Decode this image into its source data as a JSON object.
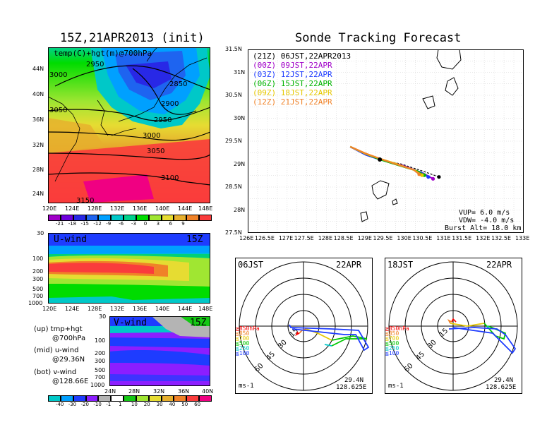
{
  "left_title": "15Z,21APR2013 (init)",
  "right_title": "Sonde Tracking Forecast",
  "map_panel": {
    "label": "temp(C)+hgt(m)@700hPa",
    "lat_labels": [
      "44N",
      "40N",
      "36N",
      "32N",
      "28N",
      "24N"
    ],
    "lon_labels": [
      "120E",
      "124E",
      "128E",
      "132E",
      "136E",
      "140E",
      "144E",
      "148E"
    ],
    "contour_labels": [
      "2950",
      "2850",
      "3000",
      "2900",
      "3050",
      "2950",
      "3000",
      "3050",
      "3100",
      "3150"
    ],
    "colorbar_labels": [
      "-21",
      "-18",
      "-15",
      "-12",
      "-9",
      "-6",
      "-3",
      "0",
      "3",
      "6",
      "9"
    ],
    "colorbar_colors": [
      "#a000c8",
      "#6e00dc",
      "#2828e6",
      "#1e64f0",
      "#00a0ff",
      "#00c8c8",
      "#00d28c",
      "#00dc00",
      "#a0e632",
      "#e6dc32",
      "#e6af2d",
      "#f08228",
      "#fa3c3c"
    ]
  },
  "uwind_panel": {
    "title": "U-wind",
    "time": "15Z",
    "p_labels": [
      "30",
      "100",
      "200",
      "300",
      "500",
      "700",
      "1000"
    ],
    "lon_labels": [
      "120E",
      "124E",
      "128E",
      "132E",
      "136E",
      "140E",
      "144E",
      "148E"
    ]
  },
  "vwind_panel": {
    "title": "V-wind",
    "time": "15Z",
    "p_labels": [
      "30",
      "100",
      "200",
      "300",
      "500",
      "700",
      "1000"
    ],
    "lat_labels": [
      "24N",
      "28N",
      "32N",
      "36N",
      "40N"
    ],
    "colorbar_labels": [
      "-40",
      "-30",
      "-20",
      "-10",
      "-1",
      "1",
      "10",
      "20",
      "30",
      "40",
      "50",
      "60"
    ],
    "colorbar_colors": [
      "#00c8c8",
      "#00a0ff",
      "#1e3cff",
      "#8c1eff",
      "#b4b4b4",
      "#ffffff",
      "#14c814",
      "#a0e632",
      "#e6dc32",
      "#e6af2d",
      "#f08228",
      "#fa3c3c",
      "#f00082"
    ]
  },
  "side_notes": [
    {
      "top": "(up) tmp+hgt",
      "bottom": "@700hPa"
    },
    {
      "top": "(mid) u-wind",
      "bottom": "@29.36N"
    },
    {
      "top": "(bot) v-wind",
      "bottom": "@128.66E"
    }
  ],
  "track_panel": {
    "lat_labels": [
      "31.5N",
      "31N",
      "30.5N",
      "30N",
      "29.5N",
      "29N",
      "28.5N",
      "28N",
      "27.5N"
    ],
    "lon_labels": [
      "126E",
      "126.5E",
      "127E",
      "127.5E",
      "128E",
      "128.5E",
      "129E",
      "129.5E",
      "130E",
      "130.5E",
      "131E",
      "131.5E",
      "132E",
      "132.5E",
      "133E"
    ],
    "legend": [
      {
        "text": "(21Z) 06JST,22APR2013",
        "color": "#000000"
      },
      {
        "text": "(00Z) 09JST,22APR",
        "color": "#a000c8"
      },
      {
        "text": "(03Z) 12JST,22APR",
        "color": "#1e3cff"
      },
      {
        "text": "(06Z) 15JST,22APR",
        "color": "#00b400"
      },
      {
        "text": "(09Z) 18JST,22APR",
        "color": "#e6c800"
      },
      {
        "text": "(12Z) 21JST,22APR",
        "color": "#f08228"
      }
    ],
    "params": [
      "VUP=  6.0 m/s",
      "VDW= -4.0 m/s",
      "Burst Alt= 18.0 km"
    ]
  },
  "hodo_left": {
    "time": "06JST",
    "date": "22APR",
    "ring_labels": [
      "15",
      "30",
      "45",
      "60"
    ],
    "legend": [
      {
        "text": "≧850hPa",
        "color": "#fa0000"
      },
      {
        "text": "≦850",
        "color": "#f08228"
      },
      {
        "text": "≦700",
        "color": "#e6c800"
      },
      {
        "text": "≦500",
        "color": "#00c800"
      },
      {
        "text": "≦250",
        "color": "#00c8c8"
      },
      {
        "text": "≦100",
        "color": "#1e3cff"
      }
    ],
    "unit": "ms-1",
    "lat": "29.4N",
    "lon": "128.625E"
  },
  "hodo_right": {
    "time": "18JST",
    "date": "22APR",
    "ring_labels": [
      "15",
      "30",
      "45",
      "60"
    ],
    "legend": [
      {
        "text": "≧850hPa",
        "color": "#fa0000"
      },
      {
        "text": "≦850",
        "color": "#f08228"
      },
      {
        "text": "≦700",
        "color": "#e6c800"
      },
      {
        "text": "≦500",
        "color": "#00c800"
      },
      {
        "text": "≦250",
        "color": "#00c8c8"
      },
      {
        "text": "≦100",
        "color": "#1e3cff"
      }
    ],
    "unit": "ms-1",
    "lat": "29.4N",
    "lon": "128.625E"
  },
  "chart_data": {
    "type": "line",
    "title": "Sonde Tracking Forecast",
    "xlabel": "",
    "ylabel": "",
    "xlim": [
      126,
      133
    ],
    "ylim": [
      27.5,
      31.5
    ],
    "launch_point": {
      "lon": 129.35,
      "lat": 29.1
    },
    "series": [
      {
        "name": "(21Z) 06JST,22APR2013",
        "color": "#000000",
        "x": [
          128.6,
          129.0,
          129.35,
          129.9,
          130.5,
          130.85
        ],
        "y": [
          29.37,
          29.2,
          29.1,
          29.0,
          28.83,
          28.72
        ]
      },
      {
        "name": "(00Z) 09JST,22APR",
        "color": "#a000c8",
        "x": [
          128.6,
          129.0,
          129.35,
          129.9,
          130.45,
          130.7
        ],
        "y": [
          29.38,
          29.2,
          29.1,
          28.98,
          28.8,
          28.68
        ]
      },
      {
        "name": "(03Z) 12JST,22APR",
        "color": "#1e3cff",
        "x": [
          128.6,
          129.0,
          129.35,
          129.85,
          130.4,
          130.58
        ],
        "y": [
          29.38,
          29.2,
          29.1,
          28.98,
          28.82,
          28.72
        ]
      },
      {
        "name": "(06Z) 15JST,22APR",
        "color": "#00b400",
        "x": [
          128.6,
          129.0,
          129.35,
          129.8,
          130.3,
          130.48
        ],
        "y": [
          29.38,
          29.22,
          29.1,
          28.98,
          28.85,
          28.76
        ]
      },
      {
        "name": "(09Z) 18JST,22APR",
        "color": "#e6c800",
        "x": [
          128.6,
          129.0,
          129.35,
          129.8,
          130.25,
          130.42
        ],
        "y": [
          29.38,
          29.22,
          29.12,
          29.0,
          28.86,
          28.76
        ]
      },
      {
        "name": "(12Z) 21JST,22APR",
        "color": "#f08228",
        "x": [
          128.6,
          129.0,
          129.35,
          129.75,
          130.2,
          130.35
        ],
        "y": [
          29.38,
          29.23,
          29.12,
          29.0,
          28.88,
          28.78
        ]
      }
    ]
  }
}
